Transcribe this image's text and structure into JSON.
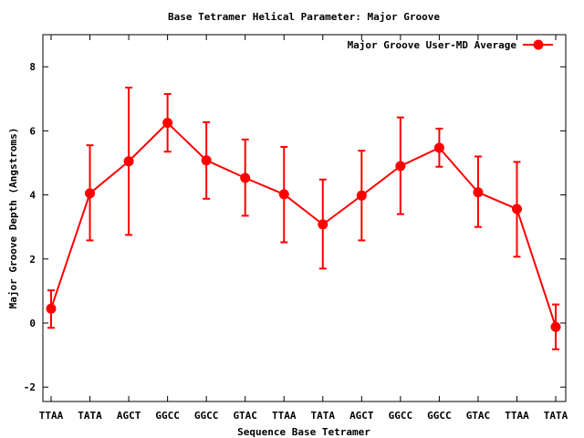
{
  "chart_data": {
    "type": "line",
    "title": "Base Tetramer Helical Parameter: Major Groove",
    "xlabel": "Sequence Base Tetramer",
    "ylabel": "Major Groove Depth (Angstroms)",
    "ylim": [
      -2.5,
      9
    ],
    "yticks": [
      -2,
      0,
      2,
      4,
      6,
      8
    ],
    "categories": [
      "TTAA",
      "TATA",
      "AGCT",
      "GGCC",
      "GGCC",
      "GTAC",
      "TTAA",
      "TATA",
      "AGCT",
      "GGCC",
      "GGCC",
      "GTAC",
      "TTAA",
      "TATA"
    ],
    "series": [
      {
        "name": "Major Groove User-MD Average",
        "color": "#ff0000",
        "values": [
          0.45,
          4.05,
          5.05,
          6.25,
          5.08,
          4.53,
          4.02,
          3.08,
          3.98,
          4.9,
          5.47,
          4.08,
          3.56,
          -0.12
        ],
        "err_low": [
          -0.15,
          2.58,
          2.75,
          5.35,
          3.88,
          3.35,
          2.52,
          1.7,
          2.58,
          3.4,
          4.88,
          3.0,
          2.07,
          -0.82
        ],
        "err_high": [
          1.02,
          5.55,
          7.35,
          7.15,
          6.27,
          5.73,
          5.5,
          4.48,
          5.38,
          6.42,
          6.07,
          5.2,
          5.03,
          0.58
        ]
      }
    ],
    "grid": false,
    "legend": "top-right"
  }
}
